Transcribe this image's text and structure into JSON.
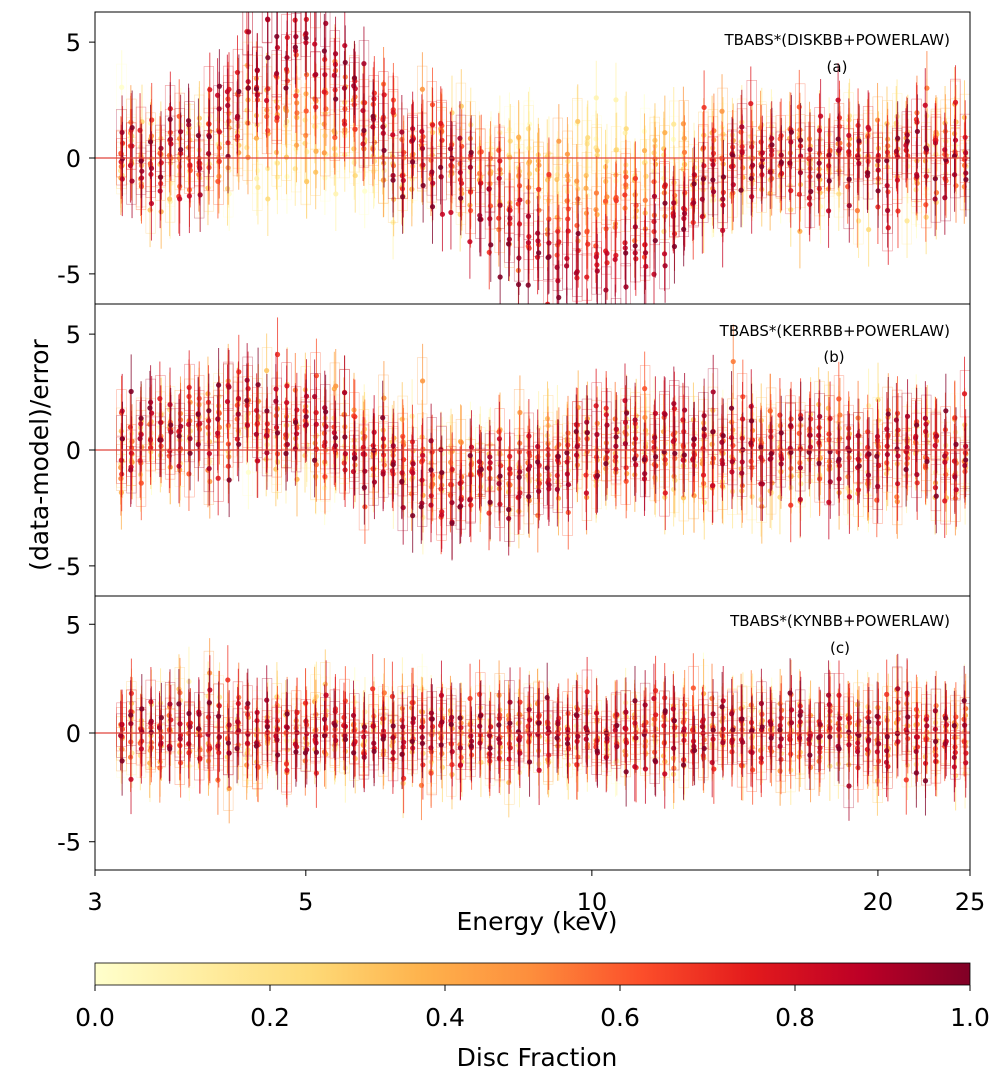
{
  "chart_data": {
    "type": "scatter",
    "figure_kind": "residual plots with error bars, colour-coded by disc fraction",
    "ylabel": "(data-model)/error",
    "xlabel": "Energy (keV)",
    "x_scale": "log",
    "xlim": [
      3,
      25
    ],
    "x_ticks": [
      3,
      5,
      10,
      20,
      25
    ],
    "x_tick_labels": [
      "3",
      "5",
      "10",
      "20",
      "25"
    ],
    "zero_line_color": "#e0443c",
    "panels": [
      {
        "id": "a",
        "model_label": "TBABS*(DISKBB+POWERLAW)",
        "panel_tag": "(a)",
        "ylim": [
          -6.3,
          6.3
        ],
        "y_ticks": [
          -5,
          0,
          5
        ],
        "y_tick_labels": [
          "-5",
          "0",
          "5"
        ],
        "spread": 1.1,
        "features": [
          {
            "kind": "excess_low_energy",
            "energy_range": [
              3.9,
              6.3
            ],
            "amplitude": 5.5
          },
          {
            "kind": "dip",
            "energy_range": [
              7.0,
              14.0
            ],
            "center": 9.0,
            "depth": -6.0
          }
        ]
      },
      {
        "id": "b",
        "model_label": "TBABS*(KERRBB+POWERLAW)",
        "panel_tag": "(b)",
        "ylim": [
          -6.3,
          6.3
        ],
        "y_ticks": [
          -5,
          0,
          5
        ],
        "y_tick_labels": [
          "-5",
          "0",
          "5"
        ],
        "spread": 1.0,
        "features": [
          {
            "kind": "wave",
            "energy_range": [
              3.2,
              10.0
            ],
            "amplitude": 1.4
          }
        ]
      },
      {
        "id": "c",
        "model_label": "TBABS*(KYNBB+POWERLAW)",
        "panel_tag": "(c)",
        "ylim": [
          -6.3,
          6.3
        ],
        "y_ticks": [
          -5,
          0,
          5
        ],
        "y_tick_labels": [
          "-5",
          "0",
          "5"
        ],
        "spread": 0.85,
        "features": []
      }
    ],
    "colorbar": {
      "label": "Disc Fraction",
      "range": [
        0.0,
        1.0
      ],
      "ticks": [
        0.0,
        0.2,
        0.4,
        0.6,
        0.8,
        1.0
      ],
      "tick_labels": [
        "0.0",
        "0.2",
        "0.4",
        "0.6",
        "0.8",
        "1.0"
      ],
      "colormap": "YlOrRd",
      "stops": [
        "#ffffcc",
        "#ffeda0",
        "#fed976",
        "#feb24c",
        "#fd8d3c",
        "#fc4e2a",
        "#e31a1c",
        "#bd0026",
        "#800026"
      ]
    }
  }
}
